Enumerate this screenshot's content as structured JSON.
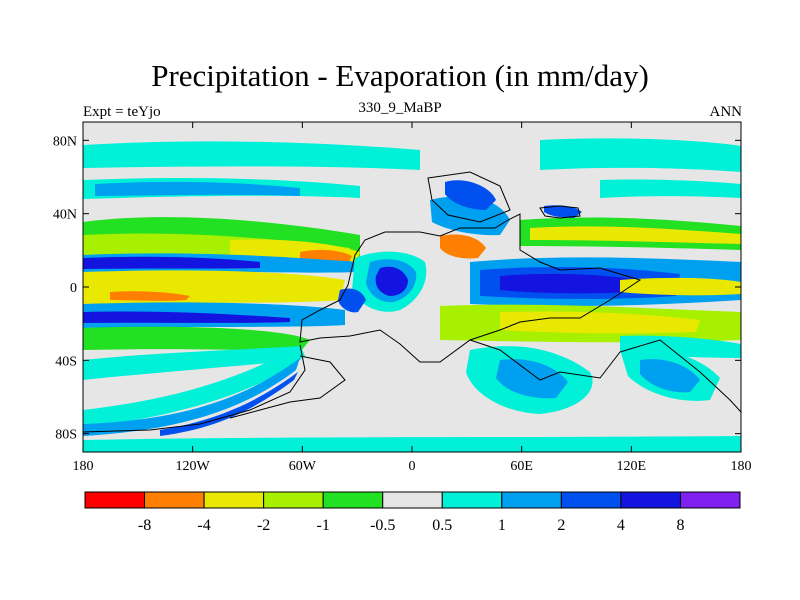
{
  "title": "Precipitation - Evaporation (in mm/day)",
  "subtitle_left": "Expt = teYjo",
  "subtitle_center": "330_9_MaBP",
  "subtitle_right": "ANN",
  "lat_labels": [
    "80N",
    "40N",
    "0",
    "40S",
    "80S"
  ],
  "lon_labels": [
    "180",
    "120W",
    "60W",
    "0",
    "60E",
    "120E",
    "180"
  ],
  "colorbar": {
    "colors": [
      "#ff0000",
      "#ff8000",
      "#e8e800",
      "#a6f000",
      "#22e022",
      "#e6e6e6",
      "#00f0d8",
      "#00a0f0",
      "#0050f0",
      "#1414e0",
      "#8020f0"
    ],
    "labels": [
      "-8",
      "-4",
      "-2",
      "-1",
      "-0.5",
      "0.5",
      "1",
      "2",
      "4",
      "8"
    ]
  },
  "colors": {
    "dry_strong": "#ff8000",
    "dry": "#e8e800",
    "dry_light": "#a6f000",
    "dry_weak": "#22e022",
    "neutral": "#e6e6e6",
    "wet_weak": "#00f0d8",
    "wet_light": "#00a0f0",
    "wet": "#0050f0",
    "wet_strong": "#1414e0"
  }
}
